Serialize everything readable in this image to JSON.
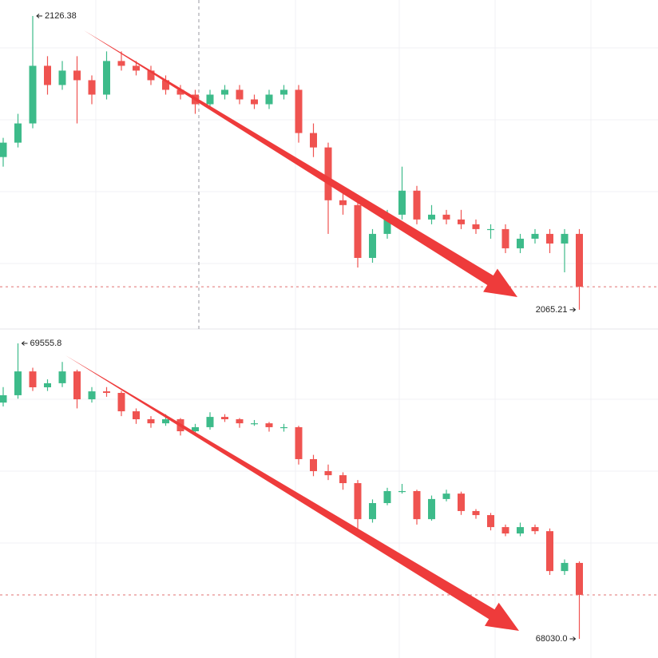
{
  "chart_data": [
    {
      "type": "candlestick",
      "up_color": "#3dbb8a",
      "down_color": "#ef5350",
      "ylim": [
        2061.2,
        2129.7
      ],
      "high_label": "2126.38",
      "low_label": "2065.21",
      "candles": [
        [
          2097,
          2101,
          2095,
          2100
        ],
        [
          2100,
          2106,
          2099,
          2104
        ],
        [
          2104,
          2126.38,
          2103,
          2116
        ],
        [
          2116,
          2118,
          2110,
          2112
        ],
        [
          2112,
          2117,
          2111,
          2115
        ],
        [
          2115,
          2118,
          2104,
          2113
        ],
        [
          2113,
          2114,
          2108,
          2110
        ],
        [
          2110,
          2119,
          2109,
          2117
        ],
        [
          2117,
          2119,
          2115,
          2116
        ],
        [
          2116,
          2117,
          2114,
          2115
        ],
        [
          2115,
          2116,
          2112,
          2113
        ],
        [
          2113,
          2114,
          2110,
          2111
        ],
        [
          2111,
          2112,
          2109,
          2110
        ],
        [
          2110,
          2111,
          2106,
          2108
        ],
        [
          2108,
          2111,
          2107,
          2110
        ],
        [
          2110,
          2112,
          2109,
          2111
        ],
        [
          2111,
          2112,
          2108,
          2109
        ],
        [
          2109,
          2110,
          2107,
          2108
        ],
        [
          2108,
          2111,
          2107,
          2110
        ],
        [
          2110,
          2112,
          2109,
          2111
        ],
        [
          2111,
          2112,
          2100,
          2102
        ],
        [
          2102,
          2104,
          2097,
          2099
        ],
        [
          2099,
          2100,
          2081,
          2088
        ],
        [
          2088,
          2090,
          2085,
          2087
        ],
        [
          2087,
          2088,
          2074,
          2076
        ],
        [
          2076,
          2082,
          2075,
          2081
        ],
        [
          2081,
          2086,
          2080,
          2085
        ],
        [
          2085,
          2095,
          2084,
          2090
        ],
        [
          2090,
          2091,
          2083,
          2084
        ],
        [
          2084,
          2087,
          2083,
          2085
        ],
        [
          2085,
          2086,
          2083,
          2084
        ],
        [
          2084,
          2086,
          2082,
          2083
        ],
        [
          2083,
          2084,
          2081,
          2082
        ],
        [
          2082,
          2083,
          2080,
          2082
        ],
        [
          2082,
          2083,
          2077,
          2078
        ],
        [
          2078,
          2081,
          2077,
          2080
        ],
        [
          2080,
          2082,
          2079,
          2081
        ],
        [
          2081,
          2082,
          2077,
          2079
        ],
        [
          2079,
          2082,
          2073,
          2081
        ],
        [
          2081,
          2082,
          2065.21,
          2070
        ]
      ]
    },
    {
      "type": "candlestick",
      "up_color": "#3dbb8a",
      "down_color": "#ef5350",
      "ylim": [
        67931,
        69630
      ],
      "high_label": "69555.8",
      "low_label": "68030.0",
      "candles": [
        [
          69250,
          69330,
          69230,
          69288
        ],
        [
          69288,
          69555.8,
          69270,
          69411
        ],
        [
          69411,
          69430,
          69310,
          69329
        ],
        [
          69329,
          69370,
          69310,
          69350
        ],
        [
          69350,
          69460,
          69330,
          69411
        ],
        [
          69411,
          69420,
          69220,
          69267
        ],
        [
          69267,
          69330,
          69250,
          69308
        ],
        [
          69308,
          69330,
          69280,
          69300
        ],
        [
          69300,
          69310,
          69180,
          69205
        ],
        [
          69205,
          69220,
          69140,
          69164
        ],
        [
          69164,
          69180,
          69120,
          69143
        ],
        [
          69143,
          69190,
          69130,
          69164
        ],
        [
          69164,
          69170,
          69080,
          69102
        ],
        [
          69102,
          69140,
          69090,
          69123
        ],
        [
          69123,
          69200,
          69110,
          69176
        ],
        [
          69176,
          69190,
          69150,
          69164
        ],
        [
          69164,
          69170,
          69120,
          69143
        ],
        [
          69143,
          69160,
          69130,
          69143
        ],
        [
          69143,
          69150,
          69100,
          69123
        ],
        [
          69123,
          69140,
          69100,
          69123
        ],
        [
          69123,
          69130,
          68930,
          68958
        ],
        [
          68958,
          68980,
          68870,
          68896
        ],
        [
          68896,
          68930,
          68850,
          68875
        ],
        [
          68875,
          68890,
          68800,
          68834
        ],
        [
          68834,
          68850,
          68600,
          68648
        ],
        [
          68648,
          68750,
          68630,
          68731
        ],
        [
          68731,
          68810,
          68720,
          68793
        ],
        [
          68793,
          68830,
          68780,
          68793
        ],
        [
          68793,
          68800,
          68620,
          68648
        ],
        [
          68648,
          68770,
          68640,
          68752
        ],
        [
          68752,
          68800,
          68740,
          68780
        ],
        [
          68780,
          68790,
          68670,
          68690
        ],
        [
          68690,
          68700,
          68650,
          68669
        ],
        [
          68669,
          68680,
          68590,
          68607
        ],
        [
          68607,
          68620,
          68560,
          68574
        ],
        [
          68574,
          68630,
          68560,
          68607
        ],
        [
          68607,
          68620,
          68570,
          68586
        ],
        [
          68586,
          68600,
          68360,
          68380
        ],
        [
          68380,
          68440,
          68360,
          68422
        ],
        [
          68422,
          68430,
          68030.0,
          68257
        ]
      ]
    }
  ]
}
